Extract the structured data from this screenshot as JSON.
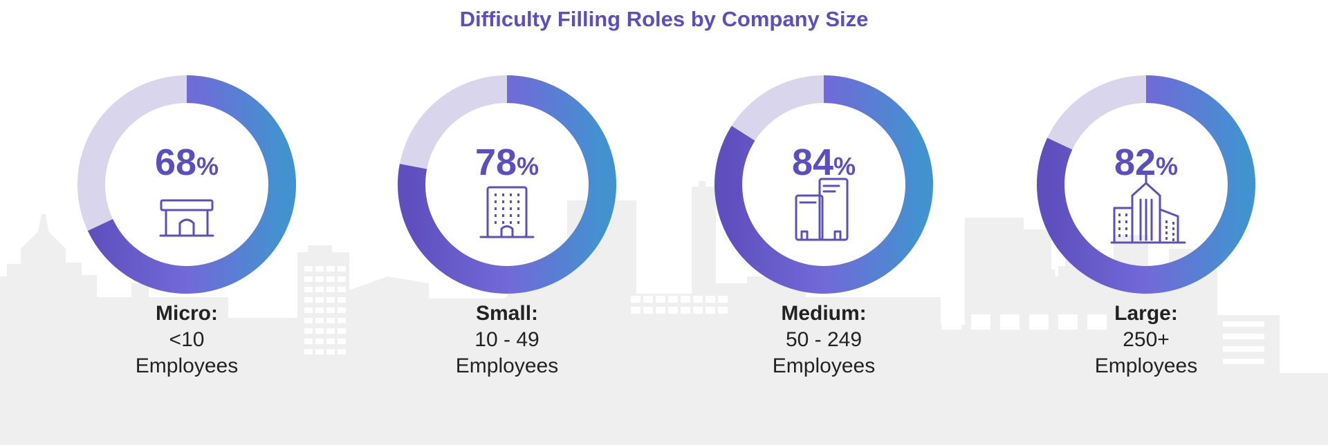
{
  "colors": {
    "accent": "#5b4fbf",
    "gradient_top": "#5f4fbe",
    "gradient_mid": "#7269d8",
    "gradient_bottom": "#4292d0",
    "remainder": "#d8d5ec",
    "skyline": "#efefef",
    "label": "#222222"
  },
  "chart_data": {
    "type": "pie",
    "variant": "donut",
    "title": "Difficulty Filling Roles by Company Size",
    "unit": "%",
    "series": [
      {
        "name": "Micro:",
        "range": "<10",
        "sub": "Employees",
        "value": 68,
        "icon": "storefront-icon"
      },
      {
        "name": "Small:",
        "range": "10 - 49",
        "sub": "Employees",
        "value": 78,
        "icon": "office-building-icon"
      },
      {
        "name": "Medium:",
        "range": "50 - 249",
        "sub": "Employees",
        "value": 84,
        "icon": "two-towers-icon"
      },
      {
        "name": "Large:",
        "range": "250+",
        "sub": "Employees",
        "value": 82,
        "icon": "skyscraper-complex-icon"
      }
    ]
  }
}
